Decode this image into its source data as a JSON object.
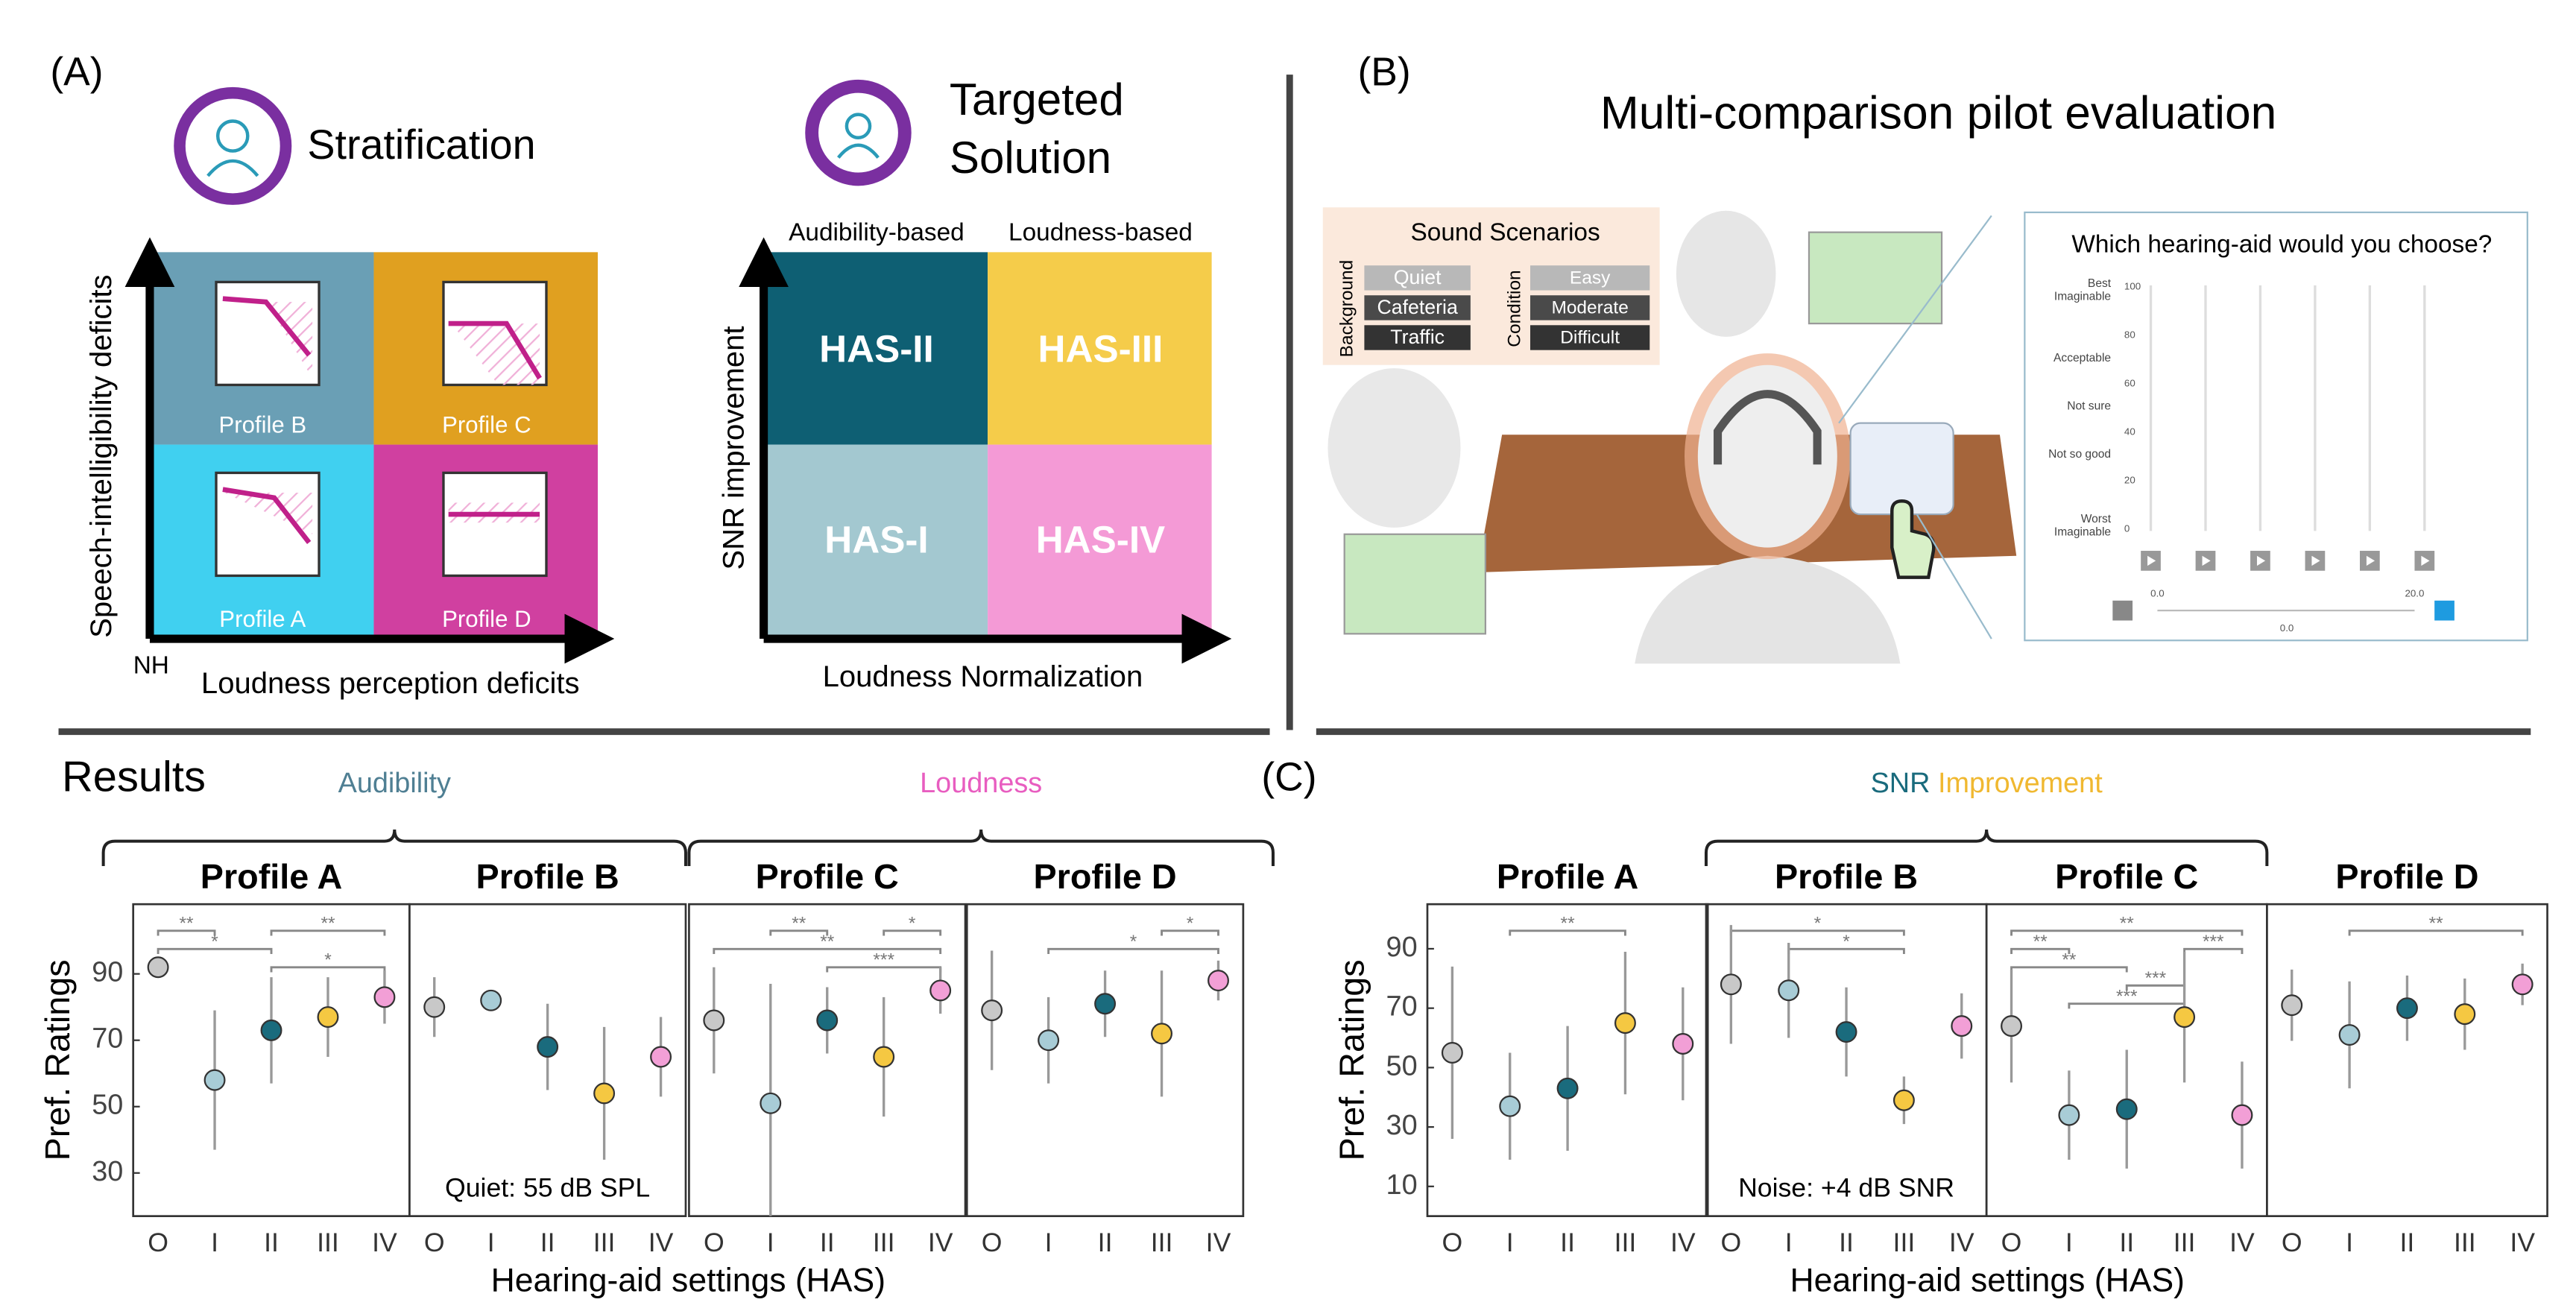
{
  "panel_a": {
    "label": "(A)",
    "stratification": {
      "title": "Stratification",
      "origin": "NH",
      "x_label": "Loudness perception deficits",
      "y_label": "Speech-intelligibility deficits",
      "profiles": [
        "Profile B",
        "Profile C",
        "Profile A",
        "Profile D"
      ]
    },
    "targeted": {
      "title_lines": [
        "Targeted",
        "Solution"
      ],
      "columns": [
        "Audibility-based",
        "Loudness-based"
      ],
      "cells": [
        "HAS-II",
        "HAS-III",
        "HAS-I",
        "HAS-IV"
      ],
      "x_label": "Loudness Normalization",
      "y_label": "SNR improvement"
    }
  },
  "panel_b": {
    "label": "(B)",
    "title": "Multi-comparison pilot evaluation",
    "sound_scenarios": {
      "title": "Sound Scenarios",
      "background_label": "Background",
      "background": [
        "Quiet",
        "Cafeteria",
        "Traffic"
      ],
      "condition_label": "Condition",
      "conditions": [
        "Easy",
        "Moderate",
        "Difficult"
      ]
    },
    "question": "Which hearing-aid would you choose?",
    "scale_labels": [
      [
        "Best",
        "Imaginable"
      ],
      [
        "Acceptable"
      ],
      [
        "Not sure"
      ],
      [
        "Not so good"
      ],
      [
        "Worst",
        "Imaginable"
      ]
    ],
    "scale_ticks": [
      100,
      80,
      60,
      40,
      20,
      0
    ],
    "slider_labels": [
      "0.0",
      "20.0",
      "0.0"
    ]
  },
  "results": {
    "title": "Results",
    "label": "(C)"
  },
  "chart_data": [
    {
      "type": "dot",
      "y_label": "Pref. Ratings",
      "x_label": "Hearing-aid settings (HAS)",
      "categories": [
        "O",
        "I",
        "II",
        "III",
        "IV"
      ],
      "colors": [
        "#c8c8c8",
        "#a8ccd6",
        "#1a6b7d",
        "#f5c842",
        "#f29fd6"
      ],
      "ylim": [
        17,
        111
      ],
      "yticks": [
        30,
        50,
        70,
        90
      ],
      "groups": [
        {
          "parts": [
            {
              "text": "Audibility",
              "color": "#4f7f93"
            }
          ],
          "facets": [
            "Profile A",
            "Profile B"
          ]
        },
        {
          "parts": [
            {
              "text": "Loudness",
              "color": "#e85dc0"
            }
          ],
          "facets": [
            "Profile C",
            "Profile D"
          ]
        }
      ],
      "facets": [
        {
          "title": "Profile A",
          "values": [
            92,
            58,
            73,
            77,
            83
          ],
          "errors": [
            3,
            21,
            16,
            12,
            8
          ],
          "significance": [
            {
              "from": "O",
              "to": "I",
              "label": "**"
            },
            {
              "from": "II",
              "to": "IV",
              "label": "**"
            },
            {
              "from": "O",
              "to": "II",
              "label": "*"
            },
            {
              "from": "II",
              "to": "IV",
              "label": "*"
            }
          ]
        },
        {
          "title": "Profile B",
          "values": [
            80,
            82,
            68,
            54,
            65
          ],
          "errors": [
            9,
            3,
            13,
            20,
            12
          ],
          "significance": [],
          "annotation": "Quiet: 55 dB SPL"
        },
        {
          "title": "Profile C",
          "values": [
            76,
            51,
            76,
            65,
            85
          ],
          "errors": [
            16,
            36,
            10,
            18,
            7
          ],
          "significance": [
            {
              "from": "III",
              "to": "IV",
              "label": "*"
            },
            {
              "from": "O",
              "to": "IV",
              "label": "**"
            },
            {
              "from": "II",
              "to": "IV",
              "label": "***"
            },
            {
              "from": "I",
              "to": "II",
              "label": "**"
            }
          ]
        },
        {
          "title": "Profile D",
          "values": [
            79,
            70,
            81,
            72,
            88
          ],
          "errors": [
            18,
            13,
            10,
            19,
            6
          ],
          "significance": [
            {
              "from": "III",
              "to": "IV",
              "label": "*"
            },
            {
              "from": "I",
              "to": "IV",
              "label": "*"
            }
          ]
        }
      ]
    },
    {
      "type": "dot",
      "y_label": "Pref. Ratings",
      "x_label": "Hearing-aid settings (HAS)",
      "categories": [
        "O",
        "I",
        "II",
        "III",
        "IV"
      ],
      "colors": [
        "#c8c8c8",
        "#a8ccd6",
        "#1a6b7d",
        "#f5c842",
        "#f29fd6"
      ],
      "ylim": [
        0,
        105
      ],
      "yticks": [
        10,
        30,
        50,
        70,
        90
      ],
      "groups": [
        {
          "parts": [
            {
              "text": "SNR",
              "color": "#1a6b7d"
            },
            {
              "text": "Improvement",
              "color": "#f0b830"
            }
          ],
          "facets": [
            "Profile B",
            "Profile C"
          ]
        }
      ],
      "facets": [
        {
          "title": "Profile A",
          "values": [
            55,
            37,
            43,
            65,
            58
          ],
          "errors": [
            29,
            18,
            21,
            24,
            19
          ],
          "significance": [
            {
              "from": "I",
              "to": "III",
              "label": "**"
            }
          ]
        },
        {
          "title": "Profile B",
          "values": [
            78,
            76,
            62,
            39,
            64
          ],
          "errors": [
            20,
            16,
            15,
            8,
            11
          ],
          "significance": [
            {
              "from": "O",
              "to": "III",
              "label": "*"
            },
            {
              "from": "I",
              "to": "III",
              "label": "*"
            }
          ],
          "annotation": "Noise: +4 dB SNR"
        },
        {
          "title": "Profile C",
          "values": [
            64,
            34,
            36,
            67,
            34
          ],
          "errors": [
            19,
            15,
            20,
            22,
            18
          ],
          "significance": [
            {
              "from": "O",
              "to": "IV",
              "label": "**"
            },
            {
              "from": "III",
              "to": "IV",
              "label": "***"
            },
            {
              "from": "O",
              "to": "I",
              "label": "**"
            },
            {
              "from": "O",
              "to": "II",
              "label": "**"
            },
            {
              "from": "II",
              "to": "III",
              "label": "***"
            },
            {
              "from": "I",
              "to": "III",
              "label": "***"
            }
          ]
        },
        {
          "title": "Profile D",
          "values": [
            71,
            61,
            70,
            68,
            78
          ],
          "errors": [
            12,
            18,
            11,
            12,
            7
          ],
          "significance": [
            {
              "from": "I",
              "to": "IV",
              "label": "**"
            }
          ]
        }
      ]
    }
  ]
}
